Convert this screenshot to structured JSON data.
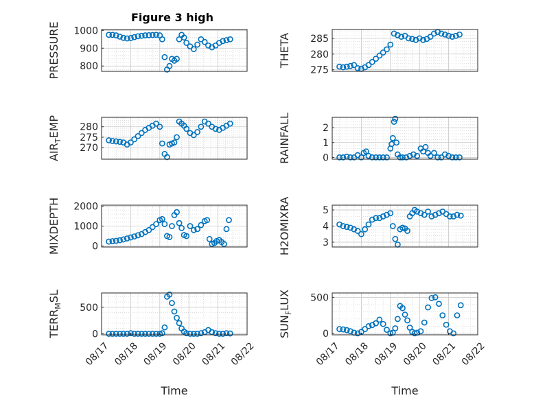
{
  "figure": {
    "title": "Figure 3 high",
    "marker_color": "#0072BD",
    "axis_color": "#262626",
    "grid_color": "#d9d9d9"
  },
  "chart_data": [
    {
      "type": "scatter",
      "id": "pressure",
      "ylabel": "PRESSURE",
      "ylim": [
        770,
        1005
      ],
      "yticks": [
        800,
        900,
        1000
      ],
      "xticks": [],
      "xlabel": "",
      "grid": true,
      "x": [
        "08/17 06:00",
        "08/17 09:00",
        "08/17 12:00",
        "08/17 15:00",
        "08/17 18:00",
        "08/17 21:00",
        "08/18 00:00",
        "08/18 03:00",
        "08/18 06:00",
        "08/18 09:00",
        "08/18 12:00",
        "08/18 15:00",
        "08/18 18:00",
        "08/18 21:00",
        "08/19 00:00",
        "08/19 02:00",
        "08/19 04:00",
        "08/19 06:00",
        "08/19 08:00",
        "08/19 10:00",
        "08/19 12:00",
        "08/19 14:00",
        "08/19 16:00",
        "08/19 18:00",
        "08/19 20:00",
        "08/19 22:00",
        "08/20 01:00",
        "08/20 04:00",
        "08/20 07:00",
        "08/20 10:00",
        "08/20 13:00",
        "08/20 16:00",
        "08/20 19:00",
        "08/20 22:00",
        "08/21 01:00",
        "08/21 04:00",
        "08/21 07:00",
        "08/21 10:00"
      ],
      "y": [
        975,
        975,
        972,
        965,
        958,
        955,
        957,
        962,
        967,
        970,
        972,
        973,
        974,
        975,
        972,
        950,
        850,
        780,
        800,
        840,
        830,
        840,
        950,
        975,
        960,
        930,
        910,
        895,
        920,
        950,
        935,
        915,
        905,
        915,
        930,
        940,
        945,
        950
      ]
    },
    {
      "type": "scatter",
      "id": "theta",
      "ylabel": "THETA",
      "ylim": [
        274.5,
        287.8
      ],
      "yticks": [
        275,
        280,
        285
      ],
      "xticks": [],
      "xlabel": "",
      "grid": true,
      "x": [
        "08/17 06:00",
        "08/17 09:00",
        "08/17 12:00",
        "08/17 15:00",
        "08/17 18:00",
        "08/17 21:00",
        "08/18 00:00",
        "08/18 03:00",
        "08/18 06:00",
        "08/18 09:00",
        "08/18 12:00",
        "08/18 15:00",
        "08/18 18:00",
        "08/18 21:00",
        "08/19 00:00",
        "08/19 03:00",
        "08/19 06:00",
        "08/19 09:00",
        "08/19 12:00",
        "08/19 15:00",
        "08/19 18:00",
        "08/19 21:00",
        "08/20 00:00",
        "08/20 03:00",
        "08/20 06:00",
        "08/20 09:00",
        "08/20 12:00",
        "08/20 15:00",
        "08/20 18:00",
        "08/20 21:00",
        "08/21 00:00",
        "08/21 03:00",
        "08/21 06:00",
        "08/21 09:00"
      ],
      "y": [
        276,
        275.8,
        276,
        276.2,
        276.5,
        275.5,
        275.3,
        275.8,
        276.5,
        277.5,
        278.5,
        279.5,
        280.5,
        281.5,
        283,
        286.5,
        286,
        285.5,
        285.8,
        285,
        284.8,
        284.5,
        285,
        284.5,
        284.8,
        285.5,
        286.5,
        287,
        286.5,
        286.2,
        285.8,
        285.5,
        285.8,
        286.2
      ]
    },
    {
      "type": "scatter",
      "id": "air_temp",
      "ylabel_main": "AIR",
      "ylabel_sub": "T",
      "ylabel_tail": "EMP",
      "ylim": [
        264.5,
        284.5
      ],
      "yticks": [
        270,
        275,
        280
      ],
      "xticks": [],
      "xlabel": "",
      "grid": true,
      "x": [
        "08/17 06:00",
        "08/17 09:00",
        "08/17 12:00",
        "08/17 15:00",
        "08/17 18:00",
        "08/17 21:00",
        "08/18 00:00",
        "08/18 03:00",
        "08/18 06:00",
        "08/18 09:00",
        "08/18 12:00",
        "08/18 15:00",
        "08/18 18:00",
        "08/18 21:00",
        "08/19 00:00",
        "08/19 02:00",
        "08/19 04:00",
        "08/19 06:00",
        "08/19 08:00",
        "08/19 10:00",
        "08/19 12:00",
        "08/19 14:00",
        "08/19 16:00",
        "08/19 18:00",
        "08/19 20:00",
        "08/19 22:00",
        "08/20 01:00",
        "08/20 04:00",
        "08/20 07:00",
        "08/20 10:00",
        "08/20 13:00",
        "08/20 16:00",
        "08/20 19:00",
        "08/20 22:00",
        "08/21 01:00",
        "08/21 04:00",
        "08/21 07:00",
        "08/21 10:00"
      ],
      "y": [
        273.5,
        273.2,
        273,
        272.8,
        272.5,
        271.5,
        272.5,
        274,
        275.5,
        277,
        278.5,
        279.5,
        280.5,
        281.5,
        280,
        272,
        267,
        265.5,
        271.5,
        272,
        272.5,
        275,
        282.5,
        281.5,
        280.5,
        279,
        277,
        276,
        277.5,
        280,
        282.5,
        281.5,
        280,
        279,
        278.5,
        279.5,
        280.5,
        281.5
      ]
    },
    {
      "type": "scatter",
      "id": "rainfall",
      "ylabel": "RAINFALL",
      "ylim": [
        -0.12,
        2.7
      ],
      "yticks": [
        0,
        1,
        2
      ],
      "xticks": [],
      "xlabel": "",
      "grid": true,
      "x": [
        "08/17 06:00",
        "08/17 09:00",
        "08/17 12:00",
        "08/17 15:00",
        "08/17 18:00",
        "08/17 21:00",
        "08/18 00:00",
        "08/18 02:00",
        "08/18 04:00",
        "08/18 06:00",
        "08/18 09:00",
        "08/18 12:00",
        "08/18 15:00",
        "08/18 18:00",
        "08/18 21:00",
        "08/19 00:00",
        "08/19 01:00",
        "08/19 02:00",
        "08/19 03:00",
        "08/19 04:00",
        "08/19 05:00",
        "08/19 06:00",
        "08/19 08:00",
        "08/19 10:00",
        "08/19 13:00",
        "08/19 16:00",
        "08/19 19:00",
        "08/19 22:00",
        "08/20 01:00",
        "08/20 03:00",
        "08/20 05:00",
        "08/20 07:00",
        "08/20 09:00",
        "08/20 12:00",
        "08/20 15:00",
        "08/20 18:00",
        "08/20 21:00",
        "08/21 00:00",
        "08/21 03:00",
        "08/21 06:00",
        "08/21 09:00"
      ],
      "y": [
        0,
        0,
        0.05,
        0,
        0,
        0.15,
        0,
        0.3,
        0.4,
        0.1,
        0,
        0,
        0,
        0,
        0,
        0.6,
        0.9,
        1.3,
        2.4,
        2.6,
        1.0,
        0.2,
        0,
        0,
        0,
        0.1,
        0.2,
        0.1,
        0.6,
        0.4,
        0.7,
        0.3,
        0.1,
        0.3,
        0,
        0,
        0.2,
        0.1,
        0,
        0,
        0
      ]
    },
    {
      "type": "scatter",
      "id": "mixdepth",
      "ylabel": "MIXDEPTH",
      "ylim": [
        -50,
        2050
      ],
      "yticks": [
        0,
        1000,
        2000
      ],
      "xticks": [],
      "xlabel": "",
      "grid": true,
      "x": [
        "08/17 06:00",
        "08/17 09:00",
        "08/17 12:00",
        "08/17 15:00",
        "08/17 18:00",
        "08/17 21:00",
        "08/18 00:00",
        "08/18 03:00",
        "08/18 06:00",
        "08/18 09:00",
        "08/18 12:00",
        "08/18 15:00",
        "08/18 18:00",
        "08/18 21:00",
        "08/19 00:00",
        "08/19 02:00",
        "08/19 04:00",
        "08/19 06:00",
        "08/19 08:00",
        "08/19 10:00",
        "08/19 12:00",
        "08/19 14:00",
        "08/19 16:00",
        "08/19 18:00",
        "08/19 20:00",
        "08/19 22:00",
        "08/20 01:00",
        "08/20 04:00",
        "08/20 07:00",
        "08/20 10:00",
        "08/20 13:00",
        "08/20 15:00",
        "08/20 17:00",
        "08/20 19:00",
        "08/20 21:00",
        "08/20 23:00",
        "08/21 01:00",
        "08/21 03:00",
        "08/21 05:00",
        "08/21 07:00",
        "08/21 09:00"
      ],
      "y": [
        220,
        240,
        260,
        290,
        330,
        380,
        430,
        480,
        540,
        600,
        700,
        800,
        950,
        1100,
        1300,
        1350,
        1100,
        500,
        450,
        1000,
        1550,
        1700,
        1150,
        900,
        550,
        500,
        1000,
        800,
        850,
        1050,
        1250,
        1300,
        350,
        100,
        150,
        250,
        300,
        200,
        100,
        850,
        1300
      ]
    },
    {
      "type": "scatter",
      "id": "h2omixra",
      "ylabel": "H2OMIXRA",
      "ylim": [
        2.7,
        5.3
      ],
      "yticks": [
        3,
        4,
        5
      ],
      "xticks": [],
      "xlabel": "",
      "grid": true,
      "x": [
        "08/17 06:00",
        "08/17 09:00",
        "08/17 12:00",
        "08/17 15:00",
        "08/17 18:00",
        "08/17 21:00",
        "08/18 00:00",
        "08/18 03:00",
        "08/18 06:00",
        "08/18 09:00",
        "08/18 12:00",
        "08/18 15:00",
        "08/18 18:00",
        "08/18 21:00",
        "08/19 00:00",
        "08/19 02:00",
        "08/19 04:00",
        "08/19 06:00",
        "08/19 08:00",
        "08/19 10:00",
        "08/19 12:00",
        "08/19 14:00",
        "08/19 16:00",
        "08/19 18:00",
        "08/19 20:00",
        "08/19 22:00",
        "08/20 01:00",
        "08/20 04:00",
        "08/20 07:00",
        "08/20 10:00",
        "08/20 13:00",
        "08/20 16:00",
        "08/20 19:00",
        "08/20 22:00",
        "08/21 01:00",
        "08/21 04:00",
        "08/21 07:00",
        "08/21 10:00"
      ],
      "y": [
        4.1,
        4.0,
        3.95,
        3.9,
        3.8,
        3.7,
        3.5,
        3.8,
        4.1,
        4.4,
        4.5,
        4.5,
        4.6,
        4.7,
        4.8,
        4.0,
        3.2,
        2.85,
        3.8,
        3.9,
        3.85,
        3.7,
        4.6,
        4.8,
        5.0,
        4.9,
        4.8,
        4.7,
        4.9,
        4.6,
        4.7,
        4.8,
        4.9,
        4.75,
        4.6,
        4.6,
        4.7,
        4.65
      ]
    },
    {
      "type": "scatter",
      "id": "terr_msl",
      "ylabel_main": "TERR",
      "ylabel_sub": "M",
      "ylabel_tail": "SL",
      "ylim": [
        -20,
        770
      ],
      "yticks": [
        0,
        500
      ],
      "xlabel": "Time",
      "grid": true,
      "xlim": [
        "08/17 00:00",
        "08/22 00:00"
      ],
      "xticks": [
        "08/17",
        "08/18",
        "08/19",
        "08/20",
        "08/21",
        "08/22"
      ],
      "x": [
        "08/17 06:00",
        "08/17 09:00",
        "08/17 12:00",
        "08/17 15:00",
        "08/17 18:00",
        "08/17 21:00",
        "08/18 00:00",
        "08/18 03:00",
        "08/18 06:00",
        "08/18 09:00",
        "08/18 12:00",
        "08/18 15:00",
        "08/18 18:00",
        "08/18 21:00",
        "08/19 00:00",
        "08/19 02:00",
        "08/19 04:00",
        "08/19 06:00",
        "08/19 08:00",
        "08/19 10:00",
        "08/19 12:00",
        "08/19 14:00",
        "08/19 16:00",
        "08/19 18:00",
        "08/19 20:00",
        "08/19 22:00",
        "08/20 01:00",
        "08/20 04:00",
        "08/20 07:00",
        "08/20 10:00",
        "08/20 13:00",
        "08/20 16:00",
        "08/20 19:00",
        "08/20 22:00",
        "08/21 01:00",
        "08/21 04:00",
        "08/21 07:00",
        "08/21 10:00"
      ],
      "y": [
        0,
        0,
        0,
        0,
        0,
        0,
        10,
        0,
        0,
        0,
        0,
        0,
        0,
        0,
        0,
        10,
        120,
        700,
        740,
        580,
        420,
        300,
        200,
        100,
        40,
        10,
        0,
        0,
        0,
        10,
        30,
        70,
        30,
        10,
        0,
        0,
        10,
        5
      ]
    },
    {
      "type": "scatter",
      "id": "sun_flux",
      "ylabel_main": "SUN",
      "ylabel_sub": "F",
      "ylabel_tail": "LUX",
      "ylim": [
        -20,
        560
      ],
      "yticks": [
        0,
        500
      ],
      "xlabel": "Time",
      "grid": true,
      "xlim": [
        "08/17 00:00",
        "08/22 00:00"
      ],
      "xticks": [
        "08/17",
        "08/18",
        "08/19",
        "08/20",
        "08/21",
        "08/22"
      ],
      "x": [
        "08/17 06:00",
        "08/17 09:00",
        "08/17 12:00",
        "08/17 15:00",
        "08/17 18:00",
        "08/17 21:00",
        "08/18 00:00",
        "08/18 03:00",
        "08/18 06:00",
        "08/18 09:00",
        "08/18 12:00",
        "08/18 15:00",
        "08/18 18:00",
        "08/18 21:00",
        "08/19 00:00",
        "08/19 02:00",
        "08/19 04:00",
        "08/19 06:00",
        "08/19 08:00",
        "08/19 10:00",
        "08/19 12:00",
        "08/19 14:00",
        "08/19 16:00",
        "08/19 18:00",
        "08/19 20:00",
        "08/19 22:00",
        "08/20 01:00",
        "08/20 04:00",
        "08/20 07:00",
        "08/20 10:00",
        "08/20 13:00",
        "08/20 16:00",
        "08/20 19:00",
        "08/20 22:00",
        "08/21 01:00",
        "08/21 04:00",
        "08/21 07:00",
        "08/21 10:00"
      ],
      "y": [
        60,
        55,
        45,
        30,
        10,
        0,
        20,
        60,
        100,
        115,
        140,
        190,
        130,
        50,
        0,
        10,
        70,
        200,
        380,
        350,
        260,
        180,
        80,
        20,
        0,
        10,
        30,
        150,
        360,
        490,
        500,
        410,
        250,
        120,
        30,
        0,
        250,
        390
      ]
    }
  ]
}
